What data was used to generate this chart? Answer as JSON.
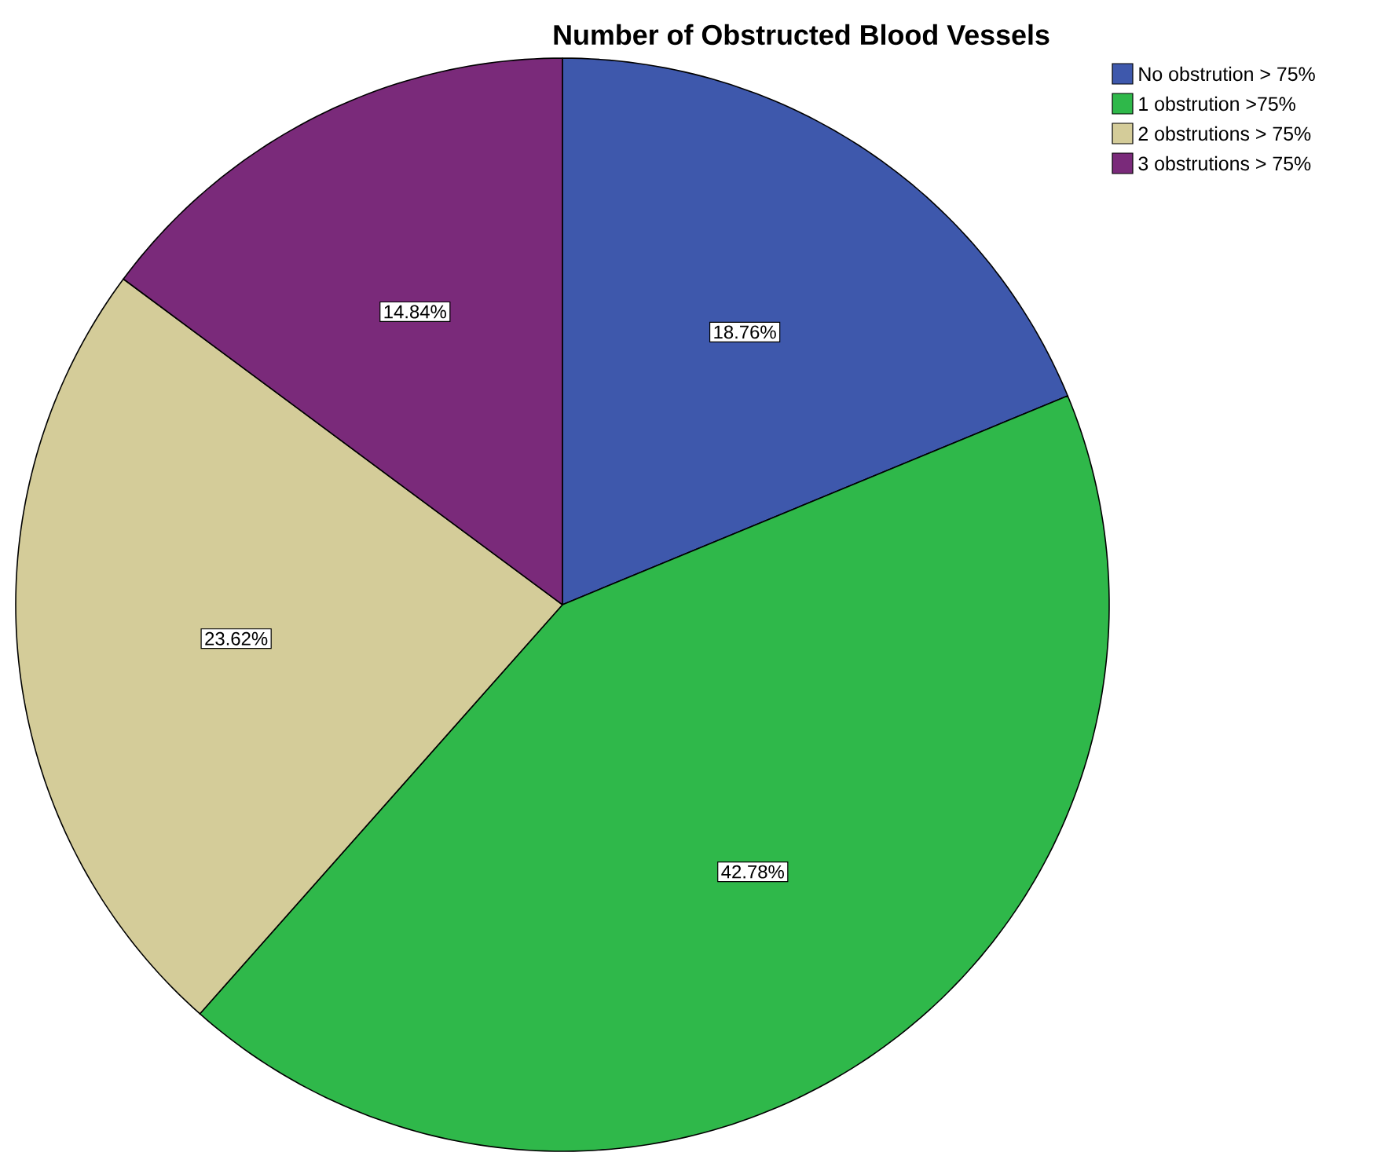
{
  "chart_data": {
    "type": "pie",
    "title": "Number of Obstructed Blood Vessels",
    "categories": [
      "No obstrution > 75%",
      "1 obstrution >75%",
      "2 obstrutions > 75%",
      "3 obstrutions > 75%"
    ],
    "values": [
      18.76,
      42.78,
      23.62,
      14.84
    ],
    "value_labels": [
      "18.76%",
      "42.78%",
      "23.62%",
      "14.84%"
    ],
    "colors": [
      "#3e58ac",
      "#2fb84a",
      "#d4cc99",
      "#7a2a7a"
    ],
    "legend": "top right"
  }
}
